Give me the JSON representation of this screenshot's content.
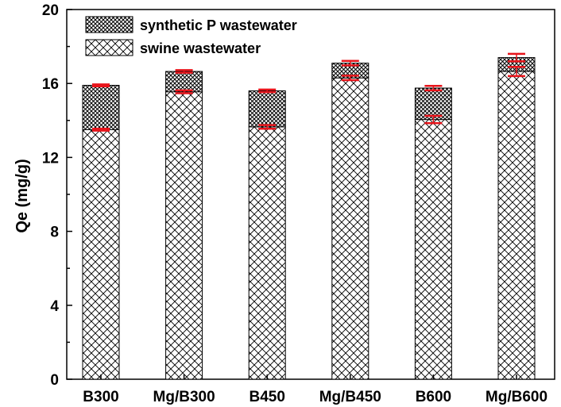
{
  "chart_data": {
    "type": "bar",
    "stacked": true,
    "categories": [
      "B300",
      "Mg/B300",
      "B450",
      "Mg/B450",
      "B600",
      "Mg/B600"
    ],
    "series": [
      {
        "name": "swine wastewater",
        "values": [
          13.5,
          15.55,
          13.65,
          16.3,
          14.05,
          16.65
        ],
        "errors": [
          0.05,
          0.08,
          0.1,
          0.12,
          0.2,
          0.25
        ],
        "hatch": "diagonal-cross"
      },
      {
        "name": "synthetic P wastewater",
        "values": [
          2.4,
          1.1,
          1.95,
          0.8,
          1.7,
          0.75
        ],
        "errors": [
          0.05,
          0.07,
          0.07,
          0.12,
          0.12,
          0.2
        ],
        "hatch": "dense-cross"
      }
    ],
    "xlabel": "",
    "ylabel": "Qe (mg/g)",
    "ylim": [
      0,
      20
    ],
    "yticks": [
      0,
      4,
      8,
      12,
      16,
      20
    ],
    "legend_position": "top-left",
    "error_bar_color": "#e8141b",
    "bar_stroke_color": "#000000"
  }
}
